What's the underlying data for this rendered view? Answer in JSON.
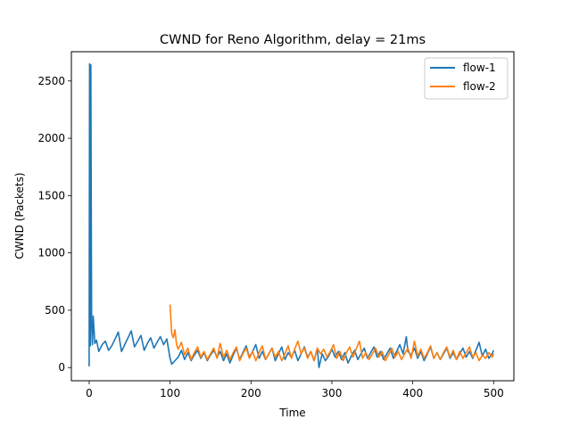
{
  "chart_data": {
    "type": "line",
    "title": "CWND for Reno Algorithm, delay = 21ms",
    "xlabel": "Time",
    "ylabel": "CWND (Packets)",
    "xlim": [
      -22,
      525
    ],
    "ylim": [
      -115,
      2755
    ],
    "xticks": [
      0,
      100,
      200,
      300,
      400,
      500
    ],
    "yticks": [
      0,
      500,
      1000,
      1500,
      2000,
      2500
    ],
    "legend_position": "top-right",
    "grid": false,
    "series": [
      {
        "name": "flow-1",
        "color": "#1f77b4",
        "x": [
          0,
          0.5,
          1,
          1.5,
          2,
          3,
          4,
          5,
          7,
          9,
          12,
          16,
          20,
          24,
          28,
          32,
          36,
          40,
          44,
          48,
          52,
          56,
          60,
          64,
          68,
          72,
          76,
          80,
          84,
          88,
          92,
          96,
          100,
          102,
          106,
          110,
          114,
          118,
          122,
          126,
          130,
          134,
          138,
          142,
          146,
          150,
          154,
          158,
          162,
          166,
          170,
          174,
          178,
          182,
          186,
          190,
          194,
          198,
          202,
          206,
          210,
          214,
          218,
          222,
          226,
          230,
          234,
          238,
          242,
          246,
          250,
          254,
          258,
          262,
          266,
          270,
          274,
          278,
          282,
          284,
          288,
          292,
          296,
          300,
          304,
          308,
          312,
          316,
          320,
          324,
          328,
          332,
          336,
          340,
          344,
          348,
          352,
          356,
          360,
          364,
          368,
          372,
          376,
          380,
          384,
          388,
          392,
          394,
          398,
          402,
          406,
          410,
          414,
          418,
          422,
          426,
          430,
          434,
          438,
          442,
          446,
          450,
          454,
          458,
          462,
          466,
          470,
          474,
          478,
          482,
          486,
          490,
          494,
          498,
          500
        ],
        "y": [
          10,
          2650,
          2620,
          190,
          2640,
          400,
          200,
          450,
          210,
          240,
          140,
          200,
          230,
          150,
          190,
          250,
          310,
          140,
          200,
          260,
          320,
          180,
          230,
          280,
          150,
          210,
          260,
          170,
          220,
          270,
          200,
          250,
          80,
          30,
          60,
          90,
          150,
          70,
          130,
          60,
          110,
          150,
          80,
          130,
          60,
          110,
          150,
          90,
          140,
          60,
          120,
          40,
          110,
          170,
          70,
          130,
          190,
          90,
          140,
          200,
          80,
          140,
          70,
          120,
          170,
          60,
          120,
          180,
          70,
          130,
          90,
          150,
          60,
          120,
          180,
          90,
          140,
          60,
          170,
          0,
          120,
          60,
          100,
          160,
          90,
          140,
          70,
          130,
          40,
          100,
          150,
          70,
          120,
          170,
          80,
          130,
          180,
          90,
          140,
          70,
          120,
          170,
          80,
          140,
          200,
          120,
          270,
          140,
          110,
          170,
          80,
          140,
          60,
          120,
          180,
          80,
          130,
          70,
          120,
          170,
          80,
          130,
          70,
          120,
          170,
          90,
          140,
          80,
          150,
          220,
          100,
          160,
          80,
          120,
          150
        ]
      },
      {
        "name": "flow-2",
        "color": "#ff7f0e",
        "x": [
          100,
          102,
          104,
          106,
          108,
          110,
          114,
          118,
          122,
          126,
          130,
          134,
          138,
          142,
          146,
          150,
          154,
          158,
          162,
          166,
          170,
          174,
          178,
          182,
          186,
          190,
          194,
          198,
          202,
          206,
          210,
          214,
          218,
          222,
          226,
          230,
          234,
          238,
          242,
          246,
          250,
          254,
          258,
          262,
          266,
          270,
          274,
          278,
          282,
          286,
          290,
          294,
          298,
          302,
          306,
          310,
          314,
          318,
          322,
          326,
          330,
          334,
          338,
          342,
          346,
          350,
          354,
          358,
          362,
          366,
          370,
          374,
          378,
          382,
          386,
          390,
          394,
          398,
          402,
          406,
          410,
          414,
          418,
          422,
          426,
          430,
          434,
          438,
          442,
          446,
          450,
          454,
          458,
          462,
          466,
          470,
          474,
          478,
          482,
          486,
          490,
          494,
          498,
          500
        ],
        "y": [
          550,
          300,
          260,
          330,
          200,
          160,
          220,
          110,
          170,
          70,
          130,
          180,
          90,
          140,
          70,
          120,
          170,
          80,
          210,
          90,
          150,
          70,
          130,
          180,
          60,
          120,
          170,
          80,
          140,
          60,
          130,
          190,
          70,
          120,
          170,
          90,
          140,
          60,
          120,
          190,
          80,
          160,
          230,
          120,
          170,
          80,
          140,
          60,
          170,
          120,
          160,
          90,
          140,
          200,
          80,
          140,
          60,
          130,
          180,
          90,
          160,
          230,
          80,
          130,
          70,
          120,
          170,
          90,
          140,
          60,
          110,
          170,
          90,
          140,
          70,
          120,
          170,
          80,
          230,
          100,
          160,
          80,
          130,
          190,
          80,
          130,
          70,
          130,
          180,
          90,
          150,
          70,
          140,
          80,
          130,
          180,
          90,
          130,
          60,
          110,
          80,
          130,
          90,
          120
        ]
      }
    ]
  }
}
